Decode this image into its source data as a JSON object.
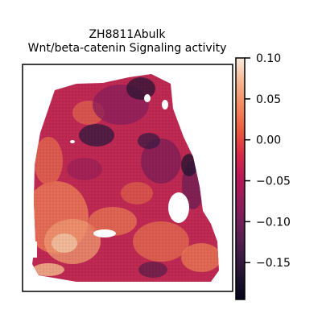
{
  "chart_data": {
    "type": "heatmap",
    "title": "ZH8811Abulk",
    "subtitle": "Wnt/beta-catenin Signaling activity",
    "xlabel": "",
    "ylabel": "",
    "grid": false,
    "legend": "colorbar-right",
    "colormap": "rocket",
    "colorbar": {
      "range": [
        -0.195,
        0.1
      ],
      "ticks": [
        0.1,
        0.05,
        0.0,
        -0.05,
        -0.1,
        -0.15
      ],
      "tick_labels": [
        "0.10",
        "0.05",
        "0.00",
        "−0.05",
        "−0.10",
        "−0.15"
      ]
    },
    "colors": {
      "low": "#03051a",
      "mid_low": "#701f57",
      "mid": "#cb1b4f",
      "mid_high": "#f37651",
      "high": "#faebdd",
      "background": "#ffffff"
    }
  }
}
